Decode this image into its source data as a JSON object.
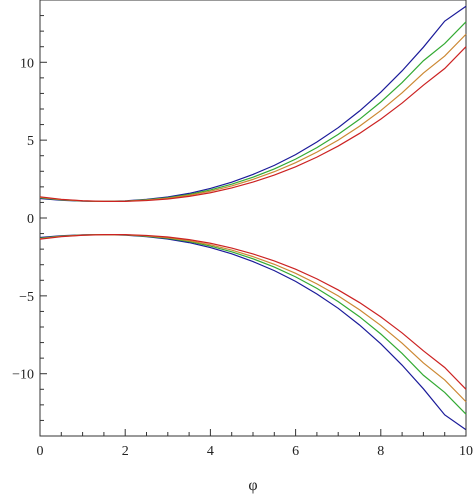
{
  "chart_data": {
    "type": "line",
    "title": "",
    "xlabel": "φ",
    "ylabel": "",
    "xlim": [
      0,
      10
    ],
    "ylim": [
      -14,
      14
    ],
    "grid": false,
    "legend": "none",
    "x_ticks": [
      0,
      2,
      4,
      6,
      8,
      10
    ],
    "y_ticks": [
      -10,
      -5,
      0,
      5,
      10
    ],
    "x": [
      0,
      0.5,
      1,
      1.5,
      2,
      2.5,
      3,
      3.5,
      4,
      4.5,
      5,
      5.5,
      6,
      6.5,
      7,
      7.5,
      8,
      8.5,
      9,
      9.5,
      10
    ],
    "series": [
      {
        "color": "#1a1a99",
        "branch": "upper",
        "values": [
          1.25,
          1.14,
          1.08,
          1.07,
          1.1,
          1.2,
          1.35,
          1.58,
          1.9,
          2.3,
          2.8,
          3.38,
          4.07,
          4.88,
          5.8,
          6.87,
          8.08,
          9.45,
          10.97,
          12.64,
          13.6
        ]
      },
      {
        "color": "#33aa33",
        "branch": "upper",
        "values": [
          1.3,
          1.16,
          1.09,
          1.07,
          1.09,
          1.17,
          1.3,
          1.51,
          1.8,
          2.17,
          2.62,
          3.15,
          3.78,
          4.52,
          5.37,
          6.34,
          7.45,
          8.7,
          10.1,
          11.2,
          12.6
        ]
      },
      {
        "color": "#cc8833",
        "branch": "upper",
        "values": [
          1.33,
          1.18,
          1.1,
          1.07,
          1.08,
          1.15,
          1.27,
          1.46,
          1.72,
          2.06,
          2.48,
          2.97,
          3.55,
          4.23,
          5.0,
          5.89,
          6.9,
          8.04,
          9.31,
          10.4,
          11.8
        ]
      },
      {
        "color": "#cc2222",
        "branch": "upper",
        "values": [
          1.36,
          1.2,
          1.11,
          1.07,
          1.07,
          1.12,
          1.22,
          1.39,
          1.62,
          1.93,
          2.31,
          2.76,
          3.29,
          3.91,
          4.62,
          5.43,
          6.35,
          7.38,
          8.53,
          9.6,
          11.0
        ]
      },
      {
        "color": "#1a1a99",
        "branch": "lower",
        "values": [
          -1.25,
          -1.14,
          -1.08,
          -1.07,
          -1.1,
          -1.2,
          -1.35,
          -1.58,
          -1.9,
          -2.3,
          -2.8,
          -3.38,
          -4.07,
          -4.88,
          -5.8,
          -6.87,
          -8.08,
          -9.45,
          -10.97,
          -12.64,
          -13.6
        ]
      },
      {
        "color": "#33aa33",
        "branch": "lower",
        "values": [
          -1.3,
          -1.16,
          -1.09,
          -1.07,
          -1.09,
          -1.17,
          -1.3,
          -1.51,
          -1.8,
          -2.17,
          -2.62,
          -3.15,
          -3.78,
          -4.52,
          -5.37,
          -6.34,
          -7.45,
          -8.7,
          -10.1,
          -11.2,
          -12.6
        ]
      },
      {
        "color": "#cc8833",
        "branch": "lower",
        "values": [
          -1.33,
          -1.18,
          -1.1,
          -1.07,
          -1.08,
          -1.15,
          -1.27,
          -1.46,
          -1.72,
          -2.06,
          -2.48,
          -2.97,
          -3.55,
          -4.23,
          -5.0,
          -5.89,
          -6.9,
          -8.04,
          -9.31,
          -10.4,
          -11.8
        ]
      },
      {
        "color": "#cc2222",
        "branch": "lower",
        "values": [
          -1.36,
          -1.2,
          -1.11,
          -1.07,
          -1.07,
          -1.12,
          -1.22,
          -1.39,
          -1.62,
          -1.93,
          -2.31,
          -2.76,
          -3.29,
          -3.91,
          -4.62,
          -5.43,
          -6.35,
          -7.38,
          -8.53,
          -9.6,
          -11.0
        ]
      }
    ]
  }
}
